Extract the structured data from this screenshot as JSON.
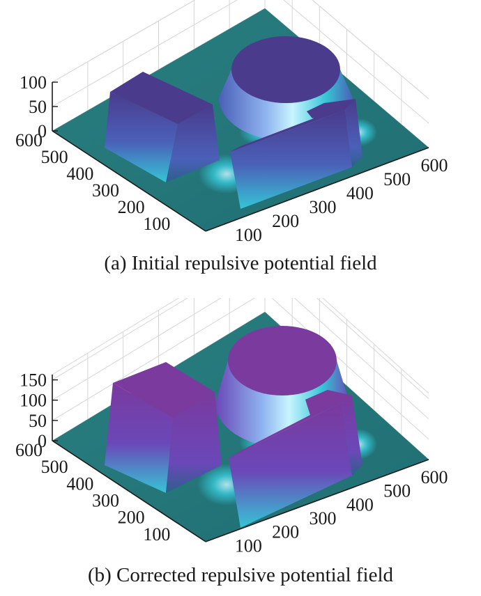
{
  "chart_data": [
    {
      "type": "surface3d",
      "title": "(a) Initial repulsive potential field",
      "x_ticks": [
        "100",
        "200",
        "300",
        "400",
        "500",
        "600"
      ],
      "y_ticks": [
        "100",
        "200",
        "300",
        "400",
        "500",
        "600"
      ],
      "z_ticks": [
        "0",
        "50",
        "100"
      ],
      "z_range": [
        0,
        100
      ],
      "colormap": [
        "#2a7f80",
        "#36c5d5",
        "#c8f4ff",
        "#4a60b8",
        "#4a3b8d"
      ],
      "obstacles": [
        {
          "shape": "box",
          "height": 100
        },
        {
          "shape": "cylinder",
          "height": 100
        },
        {
          "shape": "L-wall",
          "height": 100
        }
      ]
    },
    {
      "type": "surface3d",
      "title": "(b) Corrected repulsive potential field",
      "x_ticks": [
        "100",
        "200",
        "300",
        "400",
        "500",
        "600"
      ],
      "y_ticks": [
        "100",
        "200",
        "300",
        "400",
        "500",
        "600"
      ],
      "z_ticks": [
        "0",
        "50",
        "100",
        "150"
      ],
      "z_range": [
        0,
        150
      ],
      "colormap": [
        "#2a7f80",
        "#36c5d5",
        "#c8f4ff",
        "#6a48b8",
        "#7a3a9e"
      ],
      "obstacles": [
        {
          "shape": "box",
          "height": 150
        },
        {
          "shape": "cylinder",
          "height": 150
        },
        {
          "shape": "L-wall",
          "height": 150
        }
      ]
    }
  ]
}
